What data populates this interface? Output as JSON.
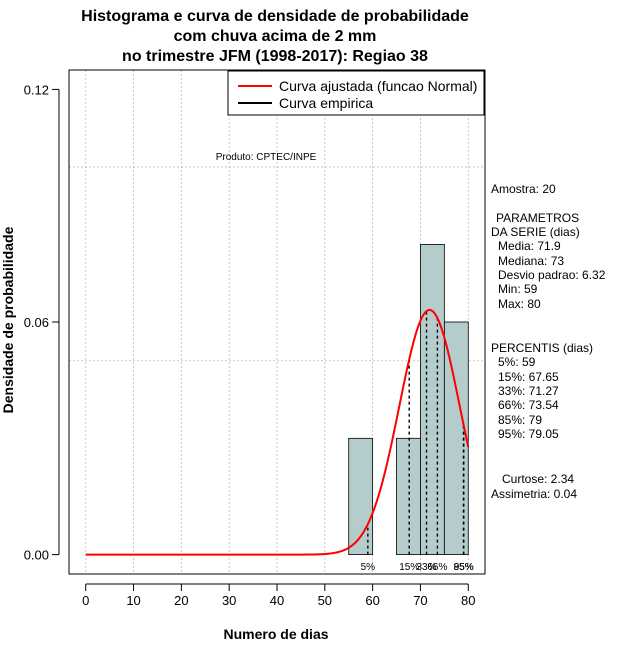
{
  "chart_data": {
    "type": "bar",
    "title": [
      "Histograma e curva de densidade de probabilidade",
      "com chuva acima de 2 mm",
      "no trimestre JFM (1998-2017): Regiao 38"
    ],
    "xlabel": "Numero de dias",
    "ylabel": "Densidade de probabilidade",
    "product_note": "Produto: CPTEC/INPE",
    "xlim": [
      -3.5,
      83.5
    ],
    "ylim": [
      -0.005,
      0.125
    ],
    "x_ticks": [
      0,
      10,
      20,
      30,
      40,
      50,
      60,
      70,
      80
    ],
    "y_ticks": [
      0.0,
      0.06,
      0.12
    ],
    "y_tick_labels": [
      "0.00",
      "0.06",
      "0.12"
    ],
    "grid": true,
    "h_grid_values": [
      0.05,
      0.1
    ],
    "histogram": {
      "bins": [
        [
          55,
          60
        ],
        [
          60,
          65
        ],
        [
          65,
          70
        ],
        [
          70,
          75
        ],
        [
          75,
          80
        ]
      ],
      "density": [
        0.03,
        0.0,
        0.03,
        0.08,
        0.06
      ]
    },
    "normal_fit": {
      "mean": 71.9,
      "sd": 6.32,
      "x_range": [
        0,
        80
      ]
    },
    "percentile_markers": [
      {
        "label": "5%",
        "value": 59
      },
      {
        "label": "15%",
        "value": 67.65
      },
      {
        "label": "33%",
        "value": 71.27
      },
      {
        "label": "66%",
        "value": 73.54
      },
      {
        "label": "85%",
        "value": 79
      },
      {
        "label": "95%",
        "value": 79.05
      }
    ],
    "legend": [
      "Curva ajustada (funcao Normal)",
      "Curva empirica"
    ],
    "colors": {
      "bar_fill": "#b5cccc",
      "curve": "#ff0000",
      "grid": "#bbbbbb"
    }
  },
  "stats": {
    "amostra": "Amostra: 20",
    "params_heading": [
      "PARAMETROS",
      "DA SERIE (dias)"
    ],
    "params": [
      "Media: 71.9",
      "Mediana: 73",
      "Desvio padrao: 6.32",
      "Min: 59",
      "Max: 80"
    ],
    "percentiles_heading": "PERCENTIS (dias)",
    "percentiles": [
      "5%: 59",
      "15%: 67.65",
      "33%: 71.27",
      "66%: 73.54",
      "85%: 79",
      "95%: 79.05"
    ],
    "curtose": "Curtose: 2.34",
    "assimetria": "Assimetria: 0.04"
  }
}
